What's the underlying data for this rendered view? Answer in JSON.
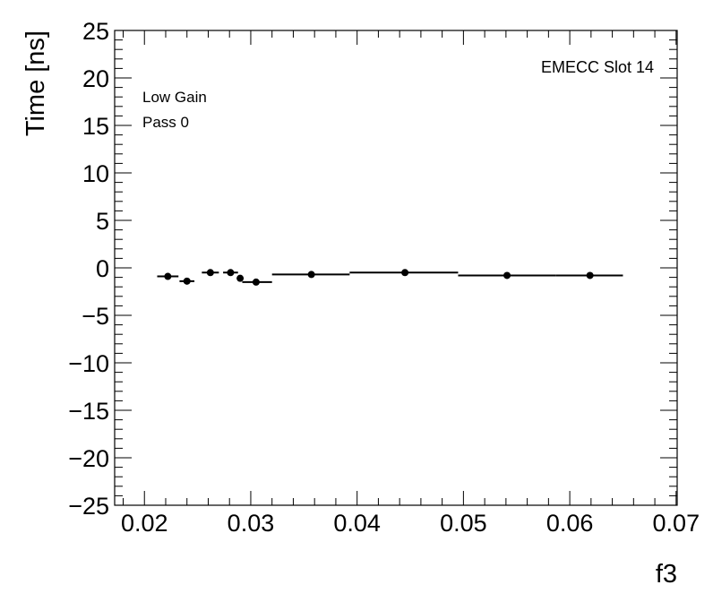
{
  "chart_data": {
    "type": "scatter",
    "xlabel": "f3",
    "ylabel": "Time [ns]",
    "xlim": [
      0.0172,
      0.0701
    ],
    "ylim": [
      -25,
      25
    ],
    "x_ticks": [
      0.02,
      0.03,
      0.04,
      0.05,
      0.06,
      0.07
    ],
    "x_tick_labels": [
      "0.02",
      "0.03",
      "0.04",
      "0.05",
      "0.06",
      "0.07"
    ],
    "y_ticks": [
      -25,
      -20,
      -15,
      -10,
      -5,
      0,
      5,
      10,
      15,
      20,
      25
    ],
    "y_tick_labels": [
      "−25",
      "−20",
      "−15",
      "−10",
      "−5",
      "0",
      "5",
      "10",
      "15",
      "20",
      "25"
    ],
    "annotations": {
      "top_right": "EMECC Slot 14",
      "line1": "Low Gain",
      "line2": "Pass 0"
    },
    "grid": false,
    "series": [
      {
        "points": [
          {
            "x": 0.0222,
            "y": -0.9,
            "xlow": 0.0212,
            "xhigh": 0.0232
          },
          {
            "x": 0.024,
            "y": -1.4,
            "xlow": 0.0233,
            "xhigh": 0.0247
          },
          {
            "x": 0.0262,
            "y": -0.5,
            "xlow": 0.0254,
            "xhigh": 0.027
          },
          {
            "x": 0.0281,
            "y": -0.5,
            "xlow": 0.0274,
            "xhigh": 0.0288
          },
          {
            "x": 0.029,
            "y": -1.1,
            "xlow": 0.0288,
            "xhigh": 0.0292
          },
          {
            "x": 0.0305,
            "y": -1.5,
            "xlow": 0.0292,
            "xhigh": 0.032
          },
          {
            "x": 0.0357,
            "y": -0.7,
            "xlow": 0.032,
            "xhigh": 0.0393
          },
          {
            "x": 0.0445,
            "y": -0.5,
            "xlow": 0.0393,
            "xhigh": 0.0495
          },
          {
            "x": 0.0541,
            "y": -0.8,
            "xlow": 0.0495,
            "xhigh": 0.0587
          },
          {
            "x": 0.0619,
            "y": -0.8,
            "xlow": 0.0587,
            "xhigh": 0.065
          }
        ]
      }
    ]
  }
}
